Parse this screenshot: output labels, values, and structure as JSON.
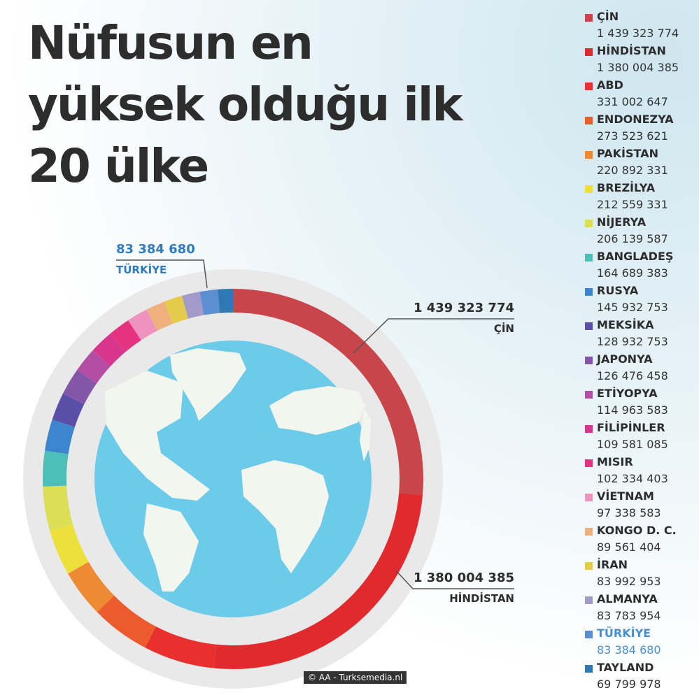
{
  "title": {
    "line1": "Nüfusun en",
    "line2": "yüksek olduğu ilk",
    "line3": "20 ülke"
  },
  "credit": "© AA - Turksemedia.nl",
  "callouts": {
    "china": {
      "value": "1 439 323 774",
      "name": "ÇİN"
    },
    "india": {
      "value": "1 380 004 385",
      "name": "HİNDİSTAN"
    },
    "turkey": {
      "value": "83 384 680",
      "name": "TÜRKİYE"
    }
  },
  "chart_data": {
    "type": "pie",
    "title": "Nüfusun en yüksek olduğu ilk 20 ülke",
    "categories": [
      "ÇİN",
      "HİNDİSTAN",
      "ABD",
      "ENDONEZYA",
      "PAKİSTAN",
      "BREZİLYA",
      "NİJERYA",
      "BANGLADEŞ",
      "RUSYA",
      "MEKSİKA",
      "JAPONYA",
      "ETİYOPYA",
      "FİLİPİNLER",
      "MISIR",
      "VİETNAM",
      "KONGO D. C.",
      "İRAN",
      "ALMANYA",
      "TÜRKİYE",
      "TAYLAND"
    ],
    "values": [
      1439323774,
      1380004385,
      331002647,
      273523621,
      220892331,
      212559331,
      206139587,
      164689383,
      145932753,
      128932753,
      126476458,
      114963583,
      109581085,
      102334403,
      97338583,
      89561404,
      83992953,
      83783954,
      83384680,
      69799978
    ],
    "labels": [
      "1 439 323 774",
      "1 380 004 385",
      "331 002 647",
      "273 523 621",
      "220 892 331",
      "212 559 331",
      "206 139 587",
      "164 689 383",
      "145 932 753",
      "128 932 753",
      "126 476 458",
      "114 963 583",
      "109 581 085",
      "102 334 403",
      "97 338 583",
      "89 561 404",
      "83 992 953",
      "83 783 954",
      "83 384 680",
      "69 799 978"
    ],
    "colors": [
      "#c8464a",
      "#e02a2e",
      "#e8302f",
      "#ec5b2e",
      "#ee8a34",
      "#ece13a",
      "#dcdf55",
      "#4dbfbb",
      "#3b86cc",
      "#5a4ea6",
      "#8456a8",
      "#b44ea5",
      "#d8368e",
      "#e6337f",
      "#ee92c0",
      "#eeb07c",
      "#e4cc4a",
      "#a29ac9",
      "#5b8fd2",
      "#2e78b3"
    ],
    "highlight": "TÜRKİYE",
    "legend": "right"
  }
}
